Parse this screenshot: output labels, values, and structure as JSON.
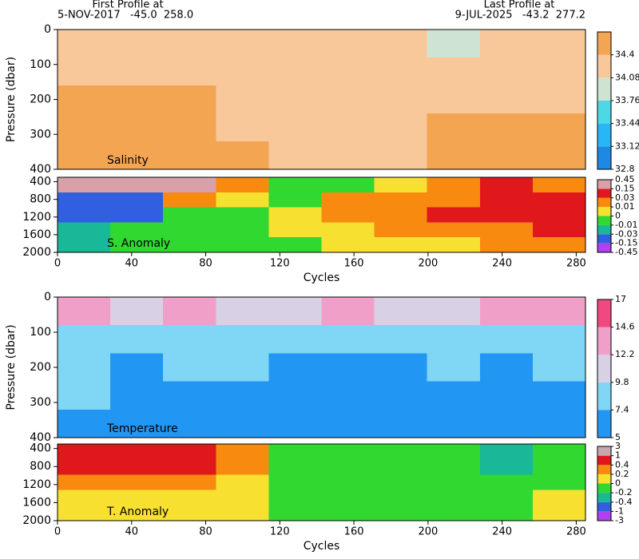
{
  "header": {
    "first_label": "First Profile at",
    "first_info": "5-NOV-2017   -45.0  258.0",
    "last_label": "Last Profile at",
    "last_info": "9-JUL-2025   -43.2  277.2"
  },
  "chart_data": [
    {
      "type": "heatmap",
      "title": "Salinity",
      "ylabel": "Pressure (dbar)",
      "invert_y": true,
      "x": [
        14,
        43,
        71,
        100,
        128,
        157,
        185,
        214,
        242,
        271
      ],
      "y": [
        40,
        120,
        200,
        280,
        360
      ],
      "xlim": [
        0,
        285
      ],
      "ylim": [
        0,
        400
      ],
      "yticks": [
        0,
        100,
        200,
        300,
        400
      ],
      "z": [
        [
          34.3,
          34.3,
          34.3,
          34.3,
          34.3,
          34.3,
          34.3,
          33.9,
          34.3,
          34.3
        ],
        [
          34.35,
          34.35,
          34.35,
          34.35,
          34.35,
          34.35,
          34.35,
          34.35,
          34.35,
          34.35
        ],
        [
          34.45,
          34.45,
          34.45,
          34.38,
          34.38,
          34.38,
          34.38,
          34.38,
          34.38,
          34.38
        ],
        [
          34.45,
          34.45,
          34.45,
          34.38,
          34.38,
          34.38,
          34.38,
          34.45,
          34.45,
          34.45
        ],
        [
          34.5,
          34.5,
          34.5,
          34.5,
          34.38,
          34.38,
          34.38,
          34.5,
          34.5,
          34.5
        ]
      ],
      "colorbar": {
        "scale": "linear",
        "lim": [
          32.8,
          34.72
        ],
        "ticks": [
          32.8,
          33.12,
          33.44,
          33.76,
          34.08,
          34.4
        ],
        "colors": [
          "#1e88e5",
          "#29b6f6",
          "#4dd8e6",
          "#cfe3d2",
          "#f8c89a",
          "#f4a552"
        ]
      }
    },
    {
      "type": "heatmap",
      "title": "S. Anomaly",
      "xlabel": "Cycles",
      "invert_y": true,
      "x": [
        14,
        43,
        71,
        100,
        128,
        157,
        185,
        214,
        242,
        271
      ],
      "y": [
        470,
        810,
        1150,
        1490,
        1830
      ],
      "xlim": [
        0,
        285
      ],
      "ylim": [
        300,
        2000
      ],
      "xticks": [
        0,
        40,
        80,
        120,
        160,
        200,
        240,
        280
      ],
      "yticks": [
        400,
        800,
        1200,
        1600,
        2000
      ],
      "z": [
        [
          0.2,
          0.2,
          0.2,
          0.02,
          -0.005,
          -0.005,
          0.005,
          0.02,
          0.1,
          0.02
        ],
        [
          -0.05,
          -0.05,
          0.02,
          0.005,
          -0.005,
          0.02,
          0.02,
          0.02,
          0.1,
          0.05
        ],
        [
          -0.05,
          -0.05,
          -0.005,
          -0.005,
          0.005,
          0.02,
          0.02,
          0.05,
          0.1,
          0.1
        ],
        [
          -0.02,
          -0.005,
          -0.005,
          -0.005,
          0.005,
          0.005,
          0.02,
          0.02,
          0.02,
          0.05
        ],
        [
          -0.02,
          -0.005,
          -0.005,
          -0.005,
          -0.005,
          0.005,
          0.005,
          0.005,
          0.02,
          0.02
        ]
      ],
      "colorbar": {
        "scale": "index",
        "lim": [
          -0.45,
          0.45
        ],
        "ticks": [
          -0.45,
          -0.15,
          -0.03,
          -0.01,
          0,
          0.01,
          0.03,
          0.15,
          0.45
        ],
        "colors": [
          "#b040f0",
          "#3060e0",
          "#18b898",
          "#30d830",
          "#f8e030",
          "#f88a10",
          "#e0181c",
          "#d8a0a8"
        ]
      }
    },
    {
      "type": "heatmap",
      "title": "Temperature",
      "ylabel": "Pressure (dbar)",
      "invert_y": true,
      "x": [
        14,
        43,
        71,
        100,
        128,
        157,
        185,
        214,
        242,
        271
      ],
      "y": [
        40,
        120,
        200,
        280,
        360
      ],
      "xlim": [
        0,
        285
      ],
      "ylim": [
        0,
        400
      ],
      "yticks": [
        0,
        100,
        200,
        300,
        400
      ],
      "z": [
        [
          13,
          10,
          13,
          10,
          10,
          13,
          10,
          10,
          13,
          13
        ],
        [
          8.5,
          9,
          9,
          9,
          9,
          9,
          9,
          9,
          9,
          9
        ],
        [
          8,
          7,
          8,
          8.5,
          7,
          7,
          7,
          8,
          7,
          8
        ],
        [
          8,
          7,
          7,
          7,
          7,
          7,
          7,
          7,
          7,
          7
        ],
        [
          7,
          7,
          7,
          6.5,
          6.5,
          6.5,
          6.5,
          6.5,
          6.5,
          6.5
        ]
      ],
      "colorbar": {
        "scale": "linear",
        "lim": [
          5,
          17
        ],
        "ticks": [
          5,
          7.4,
          9.8,
          12.2,
          14.6,
          17
        ],
        "colors": [
          "#2196f3",
          "#7fd6f5",
          "#d8d0e4",
          "#f0a0c8",
          "#f04880"
        ]
      }
    },
    {
      "type": "heatmap",
      "title": "T. Anomaly",
      "xlabel": "Cycles",
      "invert_y": true,
      "x": [
        14,
        43,
        71,
        100,
        128,
        157,
        185,
        214,
        242,
        271
      ],
      "y": [
        470,
        810,
        1150,
        1490,
        1830
      ],
      "xlim": [
        0,
        285
      ],
      "ylim": [
        300,
        2000
      ],
      "xticks": [
        0,
        40,
        80,
        120,
        160,
        200,
        240,
        280
      ],
      "yticks": [
        400,
        800,
        1200,
        1600,
        2000
      ],
      "z": [
        [
          0.7,
          0.7,
          0.7,
          0.3,
          -0.1,
          -0.1,
          -0.1,
          -0.1,
          -0.3,
          -0.1
        ],
        [
          0.7,
          0.7,
          0.5,
          0.3,
          -0.1,
          -0.1,
          -0.1,
          -0.1,
          -0.3,
          -0.1
        ],
        [
          0.3,
          0.3,
          0.25,
          0.1,
          -0.1,
          -0.1,
          -0.1,
          -0.1,
          -0.1,
          -0.1
        ],
        [
          0.1,
          0.1,
          0.1,
          0.1,
          -0.1,
          -0.1,
          -0.1,
          -0.1,
          -0.1,
          0.1
        ],
        [
          0.1,
          0.1,
          0.1,
          0.1,
          -0.1,
          -0.1,
          -0.1,
          -0.1,
          -0.1,
          0.1
        ]
      ],
      "colorbar": {
        "scale": "index",
        "lim": [
          -3,
          3
        ],
        "ticks": [
          -3,
          -1,
          -0.4,
          -0.2,
          0,
          0.2,
          0.4,
          1,
          3
        ],
        "colors": [
          "#b040f0",
          "#3060e0",
          "#18b898",
          "#30d830",
          "#f8e030",
          "#f88a10",
          "#e0181c",
          "#c8a8b0"
        ]
      }
    }
  ]
}
